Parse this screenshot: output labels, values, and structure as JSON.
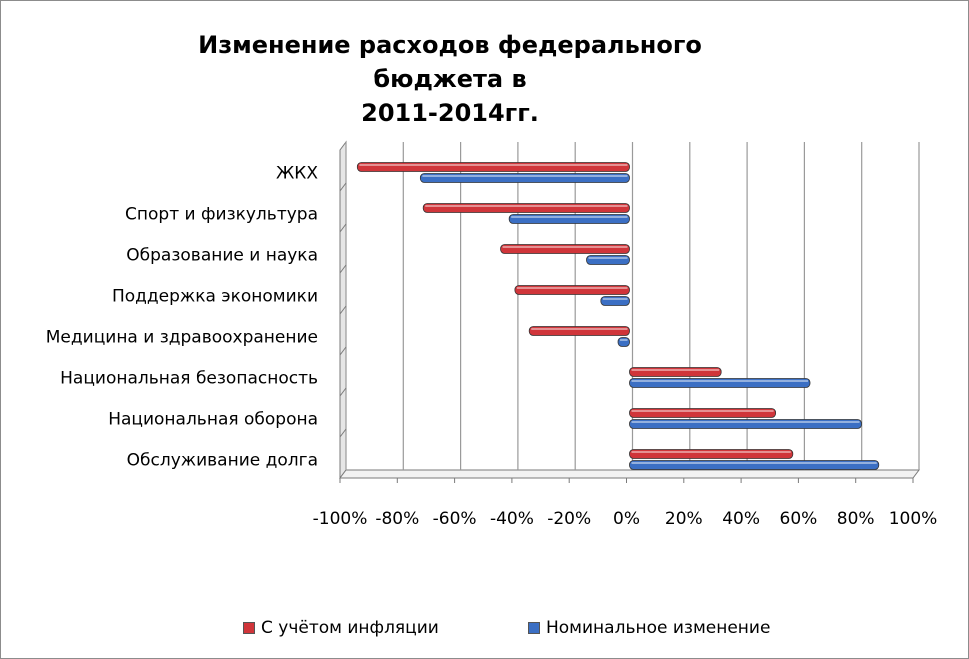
{
  "title_line1": "Изменение расходов федерального бюджета в",
  "title_line2": "2011-2014гг.",
  "colors": {
    "inflation": "#d0353a",
    "nominal": "#3b6fc4",
    "grid": "#9a9a9a",
    "wall": "#e6e6e6"
  },
  "chart_data": {
    "type": "bar",
    "orientation": "horizontal",
    "categories": [
      "ЖКХ",
      "Спорт и физкультура",
      "Образование и наука",
      "Поддержка экономики",
      "Медицина и здравоохранение",
      "Национальная безопасность",
      "Национальная оборона",
      "Обслуживание долга"
    ],
    "series": [
      {
        "name": "С учётом инфляции",
        "values": [
          -95,
          -72,
          -45,
          -40,
          -35,
          32,
          51,
          57
        ]
      },
      {
        "name": "Номинальное изменение",
        "values": [
          -73,
          -42,
          -15,
          -10,
          -4,
          63,
          81,
          87
        ]
      }
    ],
    "xlim": [
      -100,
      100
    ],
    "xticks": [
      "-100%",
      "-80%",
      "-60%",
      "-40%",
      "-20%",
      "0%",
      "20%",
      "40%",
      "60%",
      "80%",
      "100%"
    ],
    "grid": true,
    "legend": "bottom"
  }
}
